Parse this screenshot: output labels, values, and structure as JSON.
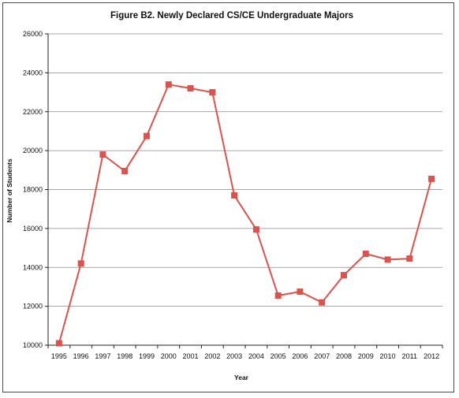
{
  "chart_data": {
    "type": "line",
    "title": "Figure B2. Newly Declared CS/CE Undergraduate Majors",
    "xlabel": "Year",
    "ylabel": "Number of Students",
    "categories": [
      "1995",
      "1996",
      "1997",
      "1998",
      "1999",
      "2000",
      "2001",
      "2002",
      "2003",
      "2004",
      "2005",
      "2006",
      "2007",
      "2008",
      "2009",
      "2010",
      "2011",
      "2012"
    ],
    "series": [
      {
        "values": [
          10100,
          14200,
          19800,
          18950,
          20750,
          23400,
          23200,
          23000,
          17700,
          15950,
          12550,
          12750,
          12200,
          13600,
          14700,
          14400,
          14450,
          18550
        ],
        "color": "#d9534f"
      }
    ],
    "ylim": [
      10000,
      26000
    ],
    "yticks": [
      10000,
      12000,
      14000,
      16000,
      18000,
      20000,
      22000,
      24000,
      26000
    ],
    "grid": true,
    "legend": "none"
  }
}
